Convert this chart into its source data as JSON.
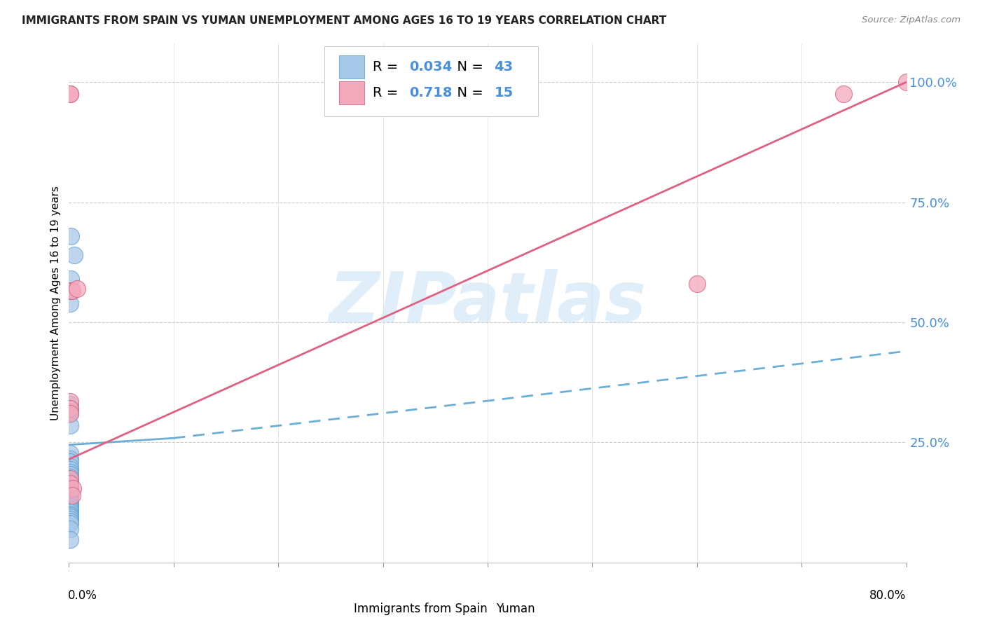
{
  "title": "IMMIGRANTS FROM SPAIN VS YUMAN UNEMPLOYMENT AMONG AGES 16 TO 19 YEARS CORRELATION CHART",
  "source": "Source: ZipAtlas.com",
  "ylabel": "Unemployment Among Ages 16 to 19 years",
  "ytick_labels": [
    "100.0%",
    "75.0%",
    "50.0%",
    "25.0%"
  ],
  "ytick_values": [
    1.0,
    0.75,
    0.5,
    0.25
  ],
  "legend_label1": "Immigrants from Spain",
  "legend_label2": "Yuman",
  "R1": "0.034",
  "N1": "43",
  "R2": "0.718",
  "N2": "15",
  "color_blue": "#a8c8e8",
  "color_pink": "#f4a8bc",
  "color_blue_line": "#6baed6",
  "color_pink_line": "#e06080",
  "color_blue_text": "#4a90d9",
  "blue_dots_x": [
    0.002,
    0.005,
    0.002,
    0.001,
    0.001,
    0.001,
    0.001,
    0.001,
    0.001,
    0.001,
    0.001,
    0.001,
    0.001,
    0.001,
    0.001,
    0.001,
    0.001,
    0.001,
    0.001,
    0.001,
    0.001,
    0.001,
    0.001,
    0.001,
    0.001,
    0.001,
    0.001,
    0.001,
    0.001,
    0.001,
    0.001,
    0.001,
    0.001,
    0.001,
    0.001,
    0.001,
    0.001,
    0.001,
    0.001,
    0.001,
    0.001,
    0.001,
    0.001
  ],
  "blue_dots_y": [
    0.68,
    0.64,
    0.59,
    0.54,
    0.33,
    0.32,
    0.315,
    0.31,
    0.285,
    0.228,
    0.215,
    0.21,
    0.2,
    0.193,
    0.188,
    0.183,
    0.178,
    0.172,
    0.168,
    0.163,
    0.157,
    0.153,
    0.149,
    0.145,
    0.141,
    0.137,
    0.133,
    0.13,
    0.127,
    0.123,
    0.12,
    0.116,
    0.112,
    0.109,
    0.105,
    0.101,
    0.098,
    0.094,
    0.09,
    0.086,
    0.082,
    0.07,
    0.048
  ],
  "pink_dots_x": [
    0.001,
    0.002,
    0.003,
    0.001,
    0.001,
    0.001,
    0.001,
    0.001,
    0.008,
    0.004,
    0.003,
    0.6,
    0.74,
    0.001,
    0.8
  ],
  "pink_dots_y": [
    0.975,
    0.565,
    0.565,
    0.335,
    0.32,
    0.31,
    0.175,
    0.165,
    0.57,
    0.155,
    0.14,
    0.58,
    0.975,
    0.975,
    1.0
  ],
  "blue_solid_line_x": [
    0.0,
    0.1
  ],
  "blue_solid_line_y": [
    0.245,
    0.259
  ],
  "blue_dash_line_x": [
    0.1,
    0.8
  ],
  "blue_dash_line_y": [
    0.259,
    0.44
  ],
  "pink_line_x": [
    0.0,
    0.8
  ],
  "pink_line_y": [
    0.215,
    1.0
  ],
  "watermark": "ZIPatlas",
  "xlim": [
    0.0,
    0.8
  ],
  "ylim": [
    0.0,
    1.08
  ]
}
